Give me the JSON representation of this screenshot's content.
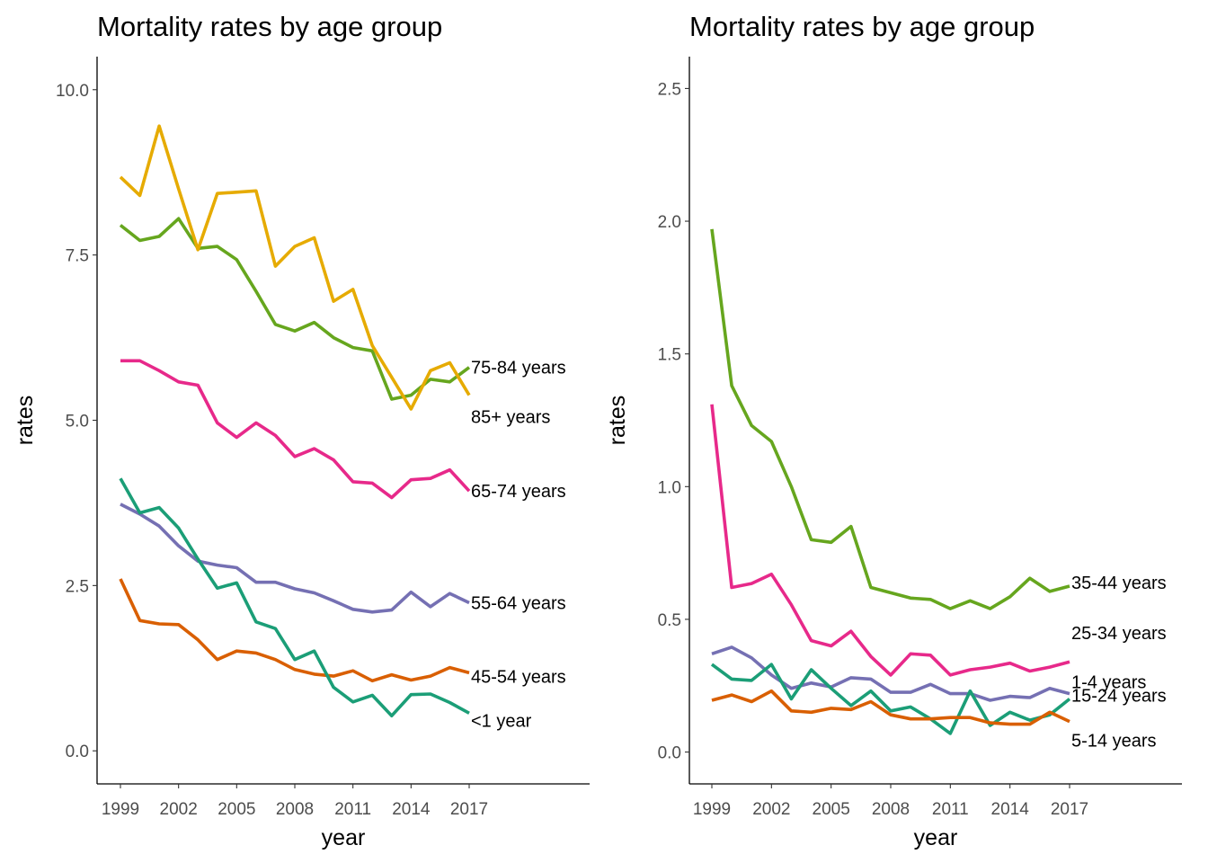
{
  "chart_data": [
    {
      "type": "line",
      "title": "Mortality rates by age group",
      "xlabel": "year",
      "ylabel": "rates",
      "x": [
        1999,
        2000,
        2001,
        2002,
        2003,
        2004,
        2005,
        2006,
        2007,
        2008,
        2009,
        2010,
        2011,
        2012,
        2013,
        2014,
        2015,
        2016,
        2017
      ],
      "xticks": [
        "1999",
        "2002",
        "2005",
        "2008",
        "2011",
        "2014",
        "2017"
      ],
      "xlim": [
        1999,
        2017
      ],
      "ylim": [
        -0.5,
        10.5
      ],
      "yticks": [
        "0.0",
        "2.5",
        "5.0",
        "7.5",
        "10.0"
      ],
      "grid": false,
      "legend": "direct labels at line ends",
      "series": [
        {
          "name": "75-84 years",
          "color": "#66a61e",
          "values": [
            7.95,
            7.72,
            7.78,
            8.05,
            7.6,
            7.63,
            7.43,
            6.95,
            6.45,
            6.35,
            6.48,
            6.25,
            6.1,
            6.05,
            5.32,
            5.38,
            5.62,
            5.58,
            5.8
          ]
        },
        {
          "name": "85+ years",
          "color": "#e6ab02",
          "values": [
            8.68,
            8.4,
            9.45,
            8.5,
            7.58,
            8.43,
            8.45,
            8.47,
            7.33,
            7.63,
            7.76,
            6.8,
            6.98,
            6.13,
            5.65,
            5.17,
            5.75,
            5.87,
            5.38
          ]
        },
        {
          "name": "65-74 years",
          "color": "#e7298a",
          "values": [
            5.9,
            5.9,
            5.75,
            5.58,
            5.53,
            4.96,
            4.74,
            4.96,
            4.77,
            4.45,
            4.57,
            4.4,
            4.07,
            4.05,
            3.83,
            4.1,
            4.12,
            4.25,
            3.93
          ]
        },
        {
          "name": "55-64 years",
          "color": "#7570b3",
          "values": [
            3.73,
            3.58,
            3.4,
            3.1,
            2.87,
            2.81,
            2.77,
            2.55,
            2.55,
            2.45,
            2.39,
            2.27,
            2.14,
            2.1,
            2.13,
            2.4,
            2.18,
            2.38,
            2.24
          ]
        },
        {
          "name": "45-54 years",
          "color": "#d95f02",
          "values": [
            2.6,
            1.97,
            1.92,
            1.91,
            1.68,
            1.38,
            1.51,
            1.48,
            1.38,
            1.23,
            1.16,
            1.13,
            1.21,
            1.06,
            1.15,
            1.07,
            1.13,
            1.26,
            1.18
          ]
        },
        {
          "name": "<1 year",
          "color": "#1b9e77",
          "values": [
            4.12,
            3.6,
            3.68,
            3.37,
            2.9,
            2.46,
            2.54,
            1.95,
            1.85,
            1.38,
            1.51,
            0.96,
            0.74,
            0.84,
            0.53,
            0.85,
            0.86,
            0.73,
            0.57
          ]
        }
      ],
      "labels": [
        {
          "text": "75-84 years",
          "series": 0
        },
        {
          "text": "85+ years",
          "series": 1
        },
        {
          "text": "65-74 years",
          "series": 2
        },
        {
          "text": "55-64 years",
          "series": 3
        },
        {
          "text": "45-54 years",
          "series": 4
        },
        {
          "text": "<1 year",
          "series": 5
        }
      ]
    },
    {
      "type": "line",
      "title": "Mortality rates by age group",
      "xlabel": "year",
      "ylabel": "rates",
      "x": [
        1999,
        2000,
        2001,
        2002,
        2003,
        2004,
        2005,
        2006,
        2007,
        2008,
        2009,
        2010,
        2011,
        2012,
        2013,
        2014,
        2015,
        2016,
        2017
      ],
      "xticks": [
        "1999",
        "2002",
        "2005",
        "2008",
        "2011",
        "2014",
        "2017"
      ],
      "xlim": [
        1999,
        2017
      ],
      "ylim": [
        -0.12,
        2.62
      ],
      "yticks": [
        "0.0",
        "0.5",
        "1.0",
        "1.5",
        "2.0",
        "2.5"
      ],
      "grid": false,
      "legend": "direct labels at line ends",
      "series": [
        {
          "name": "35-44 years",
          "color": "#66a61e",
          "values": [
            1.97,
            1.38,
            1.23,
            1.17,
            1.0,
            0.8,
            0.79,
            0.85,
            0.62,
            0.6,
            0.58,
            0.575,
            0.54,
            0.57,
            0.54,
            0.585,
            0.655,
            0.605,
            0.625
          ]
        },
        {
          "name": "25-34 years",
          "color": "#e7298a",
          "values": [
            1.31,
            0.62,
            0.635,
            0.67,
            0.555,
            0.42,
            0.4,
            0.455,
            0.36,
            0.29,
            0.37,
            0.365,
            0.29,
            0.31,
            0.32,
            0.335,
            0.305,
            0.32,
            0.34
          ]
        },
        {
          "name": "15-24 years",
          "color": "#7570b3",
          "values": [
            0.37,
            0.395,
            0.355,
            0.29,
            0.24,
            0.26,
            0.245,
            0.28,
            0.275,
            0.225,
            0.225,
            0.255,
            0.22,
            0.22,
            0.195,
            0.21,
            0.205,
            0.24,
            0.22
          ]
        },
        {
          "name": "1-4 years",
          "color": "#1b9e77",
          "values": [
            0.33,
            0.275,
            0.27,
            0.33,
            0.2,
            0.31,
            0.24,
            0.175,
            0.23,
            0.155,
            0.17,
            0.125,
            0.07,
            0.23,
            0.1,
            0.15,
            0.12,
            0.14,
            0.2
          ]
        },
        {
          "name": "5-14 years",
          "color": "#d95f02",
          "values": [
            0.195,
            0.215,
            0.19,
            0.23,
            0.155,
            0.15,
            0.165,
            0.16,
            0.19,
            0.14,
            0.125,
            0.125,
            0.13,
            0.13,
            0.11,
            0.105,
            0.105,
            0.15,
            0.115
          ]
        }
      ],
      "labels": [
        {
          "text": "35-44 years",
          "series": 0
        },
        {
          "text": "25-34 years",
          "series": 1
        },
        {
          "text": "15-24 years",
          "series": 2
        },
        {
          "text": "1-4 years",
          "series": 3
        },
        {
          "text": "5-14 years",
          "series": 4
        }
      ]
    }
  ]
}
